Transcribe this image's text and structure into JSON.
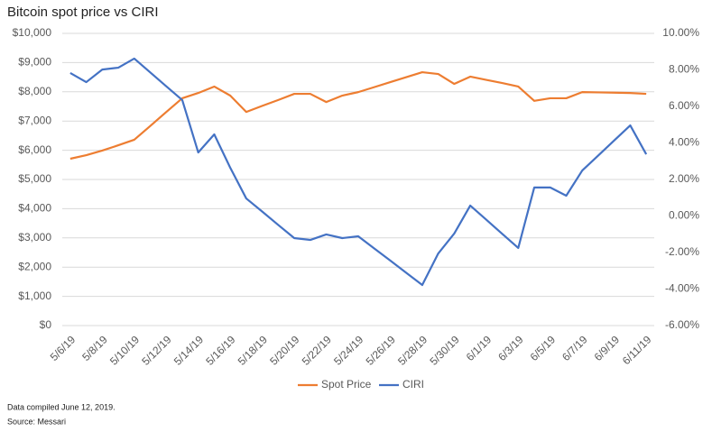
{
  "chart_data": {
    "type": "line",
    "title": "Bitcoin spot price vs CIRI",
    "categories": [
      "5/6/19",
      null,
      "5/8/19",
      null,
      "5/10/19",
      null,
      "5/12/19",
      null,
      "5/14/19",
      null,
      "5/16/19",
      null,
      "5/18/19",
      null,
      "5/20/19",
      null,
      "5/22/19",
      null,
      "5/24/19",
      null,
      "5/26/19",
      null,
      "5/28/19",
      null,
      "5/30/19",
      null,
      "6/1/19",
      null,
      "6/3/19",
      null,
      "6/5/19",
      null,
      "6/7/19",
      null,
      "6/9/19",
      null,
      "6/11/19"
    ],
    "series": [
      {
        "name": "Spot Price",
        "color": "#ed7d31",
        "values": [
          5710,
          5830,
          5990,
          6170,
          6360,
          6830,
          7310,
          7780,
          7960,
          8180,
          7870,
          7310,
          7520,
          7720,
          7930,
          7930,
          7650,
          7870,
          7990,
          8160,
          8330,
          8500,
          8670,
          8610,
          8270,
          8520,
          8410,
          8300,
          8180,
          7690,
          7780,
          7780,
          7990,
          7980,
          7970,
          7960,
          7930
        ]
      },
      {
        "name": "CIRI",
        "color": "#4472c4",
        "axis": "y2",
        "values": [
          7.83,
          7.33,
          8.02,
          8.12,
          8.62,
          7.86,
          7.1,
          6.35,
          3.48,
          4.47,
          2.64,
          0.96,
          0.24,
          -0.49,
          -1.21,
          -1.31,
          -1.01,
          -1.21,
          -1.11,
          -1.78,
          -2.44,
          -3.11,
          -3.78,
          -2.05,
          -0.96,
          0.57,
          -0.2,
          -0.98,
          -1.75,
          1.56,
          1.56,
          1.11,
          2.49,
          3.31,
          4.14,
          4.96,
          3.38
        ]
      }
    ],
    "ylim": [
      0,
      10000
    ],
    "yticks": [
      {
        "value": 0,
        "label": "$0"
      },
      {
        "value": 1000,
        "label": "$1,000"
      },
      {
        "value": 2000,
        "label": "$2,000"
      },
      {
        "value": 3000,
        "label": "$3,000"
      },
      {
        "value": 4000,
        "label": "$4,000"
      },
      {
        "value": 5000,
        "label": "$5,000"
      },
      {
        "value": 6000,
        "label": "$6,000"
      },
      {
        "value": 7000,
        "label": "$7,000"
      },
      {
        "value": 8000,
        "label": "$8,000"
      },
      {
        "value": 9000,
        "label": "$9,000"
      },
      {
        "value": 10000,
        "label": "$10,000"
      }
    ],
    "y2lim": [
      -6,
      10
    ],
    "y2ticks": [
      {
        "value": -6,
        "label": "-6.00%"
      },
      {
        "value": -4,
        "label": "-4.00%"
      },
      {
        "value": -2,
        "label": "-2.00%"
      },
      {
        "value": 0,
        "label": "0.00%"
      },
      {
        "value": 2,
        "label": "2.00%"
      },
      {
        "value": 4,
        "label": "4.00%"
      },
      {
        "value": 6,
        "label": "6.00%"
      },
      {
        "value": 8,
        "label": "8.00%"
      },
      {
        "value": 10,
        "label": "10.00%"
      }
    ],
    "grid": true,
    "legend": "bottom",
    "notes": [
      "Data compiled June 12, 2019.",
      "Source: Messari"
    ]
  }
}
